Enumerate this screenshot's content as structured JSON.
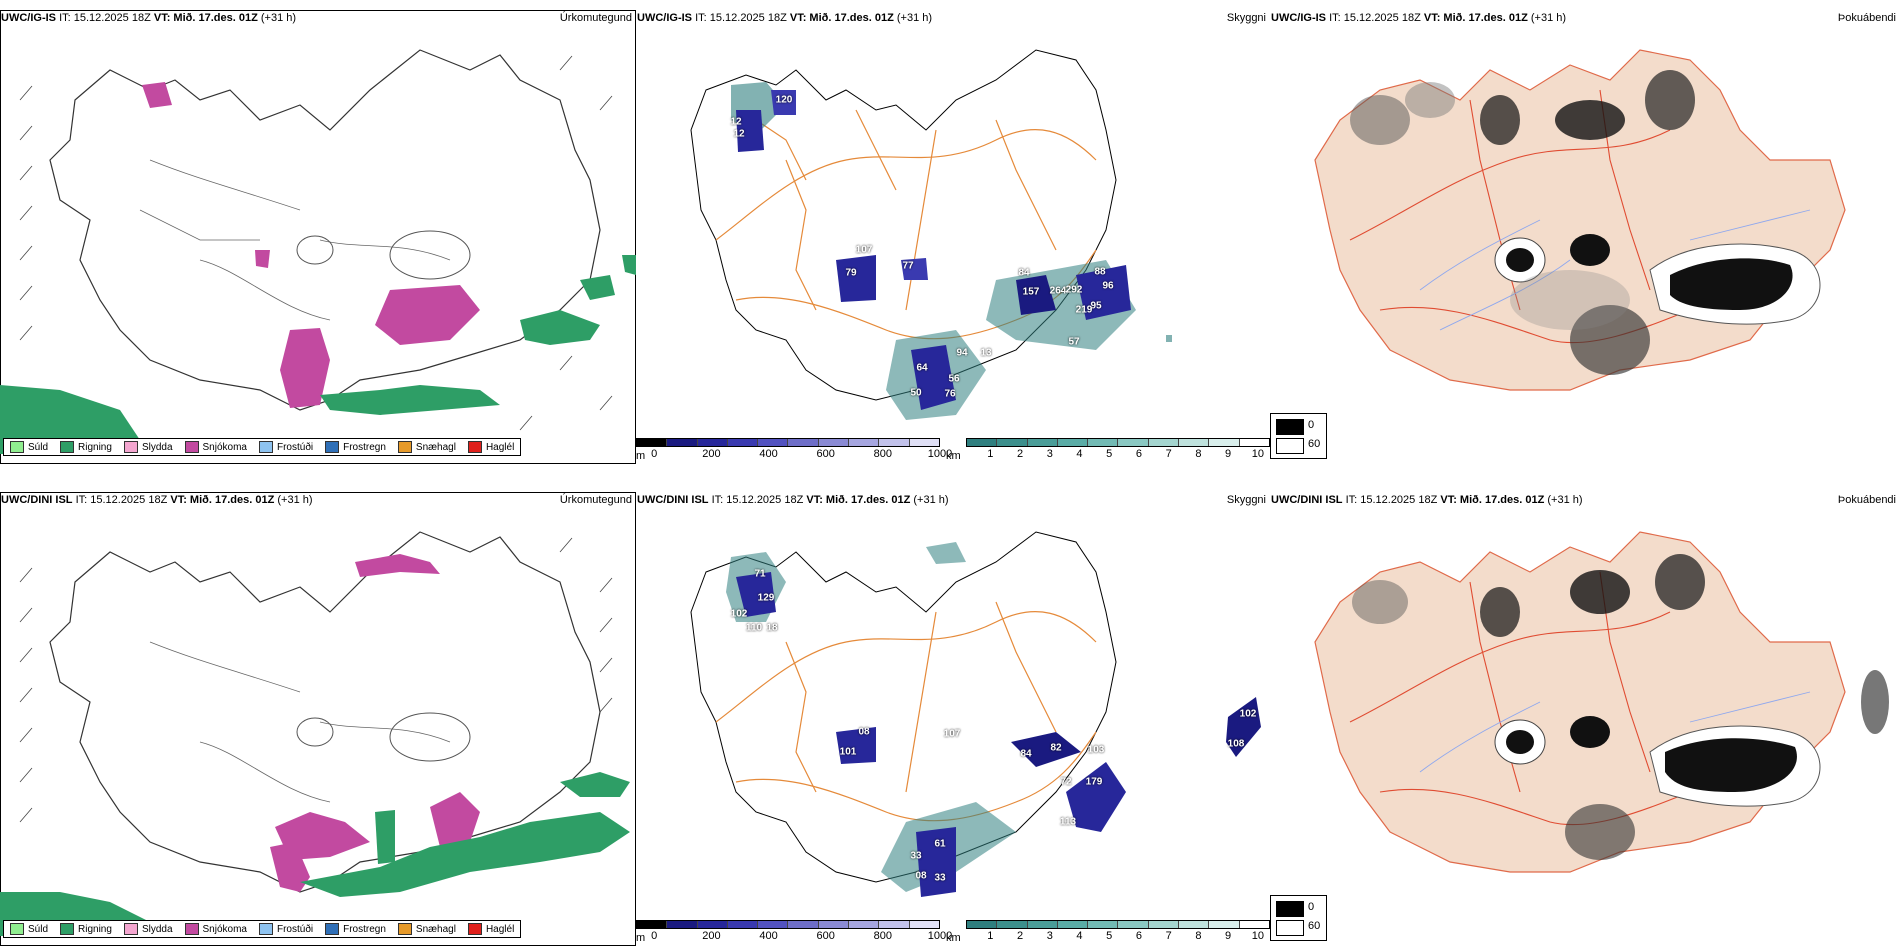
{
  "rows": [
    {
      "precip": {
        "model": "UWC/IG-IS",
        "it": "IT: 15.12.2025 18Z",
        "vt_label": "VT:",
        "vt": "Mið. 17.des. 01Z",
        "lead": "(+31 h)",
        "kind": "Úrkomutegund"
      },
      "vis": {
        "model": "UWC/IG-IS",
        "it": "IT: 15.12.2025 18Z",
        "vt_label": "VT:",
        "vt": "Mið. 17.des. 01Z",
        "lead": "(+31 h)",
        "kind": "Skyggni",
        "labels": [
          "120",
          "12",
          "12",
          "107",
          "79",
          "77",
          "84",
          "157",
          "264",
          "292",
          "88",
          "96",
          "95",
          "219",
          "57",
          "94",
          "64",
          "56",
          "50",
          "76",
          "13"
        ]
      },
      "fog": {
        "model": "UWC/IG-IS",
        "it": "IT: 15.12.2025 18Z",
        "vt_label": "VT:",
        "vt": "Mið. 17.des. 01Z",
        "lead": "(+31 h)",
        "kind": "Þokuábendi"
      }
    },
    {
      "precip": {
        "model": "UWC/DINI ISL",
        "it": "IT: 15.12.2025 18Z",
        "vt_label": "VT:",
        "vt": "Mið. 17.des. 01Z",
        "lead": "(+31 h)",
        "kind": "Úrkomutegund"
      },
      "vis": {
        "model": "UWC/DINI ISL",
        "it": "IT: 15.12.2025 18Z",
        "vt_label": "VT:",
        "vt": "Mið. 17.des. 01Z",
        "lead": "(+31 h)",
        "kind": "Skyggni",
        "labels": [
          "71",
          "129",
          "102",
          "110",
          "18",
          "08",
          "101",
          "107",
          "84",
          "82",
          "103",
          "72",
          "179",
          "113",
          "102",
          "108",
          "61",
          "33",
          "33",
          "08"
        ]
      },
      "fog": {
        "model": "UWC/DINI ISL",
        "it": "IT: 15.12.2025 18Z",
        "vt_label": "VT:",
        "vt": "Mið. 17.des. 01Z",
        "lead": "(+31 h)",
        "kind": "Þokuábendi"
      }
    }
  ],
  "precip_legend": [
    {
      "label": "Súld",
      "color": "#90ee90"
    },
    {
      "label": "Rigning",
      "color": "#2e9e66"
    },
    {
      "label": "Slydda",
      "color": "#f4a6d0"
    },
    {
      "label": "Snjókoma",
      "color": "#c24aa0"
    },
    {
      "label": "Frostúði",
      "color": "#8ec3f0"
    },
    {
      "label": "Frostregn",
      "color": "#2f6fb7"
    },
    {
      "label": "Snæhagl",
      "color": "#e69a2a"
    },
    {
      "label": "Haglél",
      "color": "#e0201c"
    }
  ],
  "ceiling_bar": {
    "unit": "m",
    "ticks": [
      "0",
      "200",
      "400",
      "600",
      "800",
      "1000"
    ],
    "colors": [
      "#000000",
      "#1a1a80",
      "#27279a",
      "#3a3ab0",
      "#5252c0",
      "#6e6ec8",
      "#8a8ad4",
      "#a6a6e0",
      "#c2c2eb",
      "#e0e0f6"
    ]
  },
  "visibility_bar": {
    "unit": "km",
    "ticks": [
      "1",
      "2",
      "3",
      "4",
      "5",
      "6",
      "7",
      "8",
      "9",
      "10"
    ],
    "colors": [
      "#2f7f7f",
      "#3c8f8c",
      "#4a9d98",
      "#5aaca6",
      "#72bab4",
      "#8ac8c2",
      "#a4d5cf",
      "#bfe2dd",
      "#d9efec",
      "#ffffff"
    ]
  },
  "fog_legend": [
    {
      "label": "0",
      "color": "#000000"
    },
    {
      "label": "60",
      "color": "#ffffff"
    }
  ]
}
